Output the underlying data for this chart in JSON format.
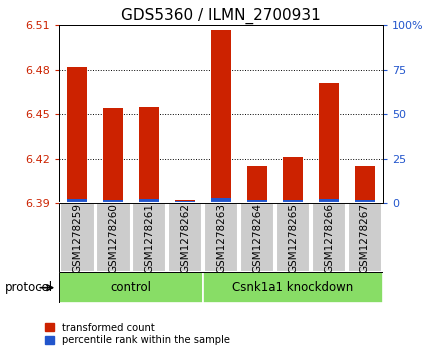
{
  "title": "GDS5360 / ILMN_2700931",
  "samples": [
    "GSM1278259",
    "GSM1278260",
    "GSM1278261",
    "GSM1278262",
    "GSM1278263",
    "GSM1278264",
    "GSM1278265",
    "GSM1278266",
    "GSM1278267"
  ],
  "red_values": [
    6.482,
    6.454,
    6.455,
    6.392,
    6.507,
    6.415,
    6.421,
    6.471,
    6.415
  ],
  "blue_heights": [
    0.003,
    0.0025,
    0.003,
    0.0015,
    0.0035,
    0.002,
    0.002,
    0.003,
    0.002
  ],
  "ylim_left": [
    6.39,
    6.51
  ],
  "ylim_right": [
    0,
    100
  ],
  "yticks_left": [
    6.39,
    6.42,
    6.45,
    6.48,
    6.51
  ],
  "yticks_right": [
    0,
    25,
    50,
    75,
    100
  ],
  "bar_bottom": 6.39,
  "bar_width": 0.55,
  "red_color": "#cc2200",
  "blue_color": "#2255cc",
  "plot_bg": "#ffffff",
  "control_label": "control",
  "knockdown_label": "Csnk1a1 knockdown",
  "group_bg_color": "#88dd66",
  "sample_bg_color": "#cccccc",
  "legend_red": "transformed count",
  "legend_blue": "percentile rank within the sample",
  "protocol_label": "protocol",
  "title_fontsize": 11,
  "tick_fontsize": 8,
  "label_fontsize": 9,
  "n_control": 4,
  "n_samples": 9
}
